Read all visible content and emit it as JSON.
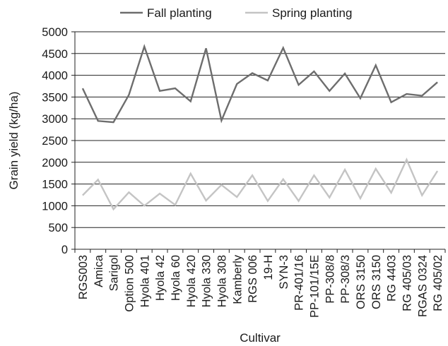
{
  "chart_data": {
    "type": "line",
    "xlabel": "Cultivar",
    "ylabel": "Grain yield (kg/ha)",
    "ylim": [
      0,
      5000
    ],
    "yticks": [
      0,
      500,
      1000,
      1500,
      2000,
      2500,
      3000,
      3500,
      4000,
      4500,
      5000
    ],
    "grid": "horizontal",
    "legend_position": "top",
    "categories": [
      "RGS003",
      "Amica",
      "Sarigol",
      "Option 500",
      "Hyola 401",
      "Hyola 42",
      "Hyola 60",
      "Hyola 420",
      "Hyola 330",
      "Hyola 308",
      "Kamberly",
      "RGS 006",
      "19-H",
      "SYN-3",
      "PR-401/16",
      "PP-101/15E",
      "PP-308/8",
      "PP-308/3",
      "ORS 3150",
      "ORS 3150",
      "RG 4403",
      "RG 405/03",
      "RGAS 0324",
      "RG 405/02"
    ],
    "series": [
      {
        "name": "Fall planting",
        "color": "#6d6d6d",
        "values": [
          3700,
          2950,
          2920,
          3550,
          4660,
          3640,
          3700,
          3400,
          4620,
          2960,
          3800,
          4050,
          3880,
          4630,
          3780,
          4090,
          3640,
          4040,
          3470,
          4230,
          3380,
          3570,
          3530,
          3840
        ]
      },
      {
        "name": "Spring planting",
        "color": "#c4c4c4",
        "values": [
          1240,
          1600,
          920,
          1310,
          1000,
          1280,
          1020,
          1740,
          1120,
          1480,
          1200,
          1700,
          1110,
          1610,
          1110,
          1700,
          1190,
          1830,
          1170,
          1850,
          1300,
          2060,
          1240,
          1800
        ]
      }
    ]
  }
}
